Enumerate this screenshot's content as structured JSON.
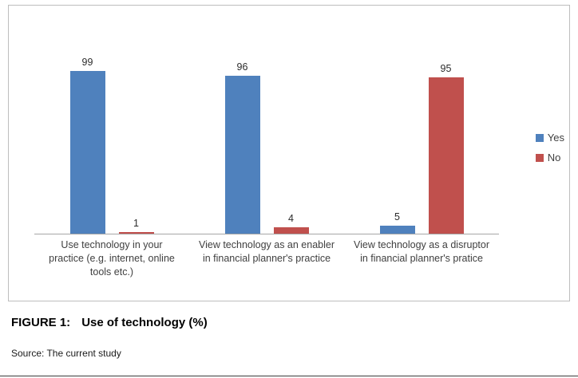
{
  "chart_data": {
    "type": "bar",
    "categories": [
      "Use technology in your practice (e.g. internet, online tools etc.)",
      "View technology as an enabler in financial planner's practice",
      "View technology as a disruptor in financial planner's pratice"
    ],
    "series": [
      {
        "name": "Yes",
        "color": "#4f81bd",
        "values": [
          99,
          96,
          5
        ]
      },
      {
        "name": "No",
        "color": "#c0504d",
        "values": [
          1,
          4,
          95
        ]
      }
    ],
    "title": "",
    "xlabel": "",
    "ylabel": "",
    "ylim": [
      0,
      100
    ],
    "grid": false,
    "legend_position": "right",
    "value_labels": true
  },
  "figure": {
    "caption_label": "FIGURE 1:",
    "caption_text": "Use of technology (%)",
    "source": "Source: The current study"
  }
}
